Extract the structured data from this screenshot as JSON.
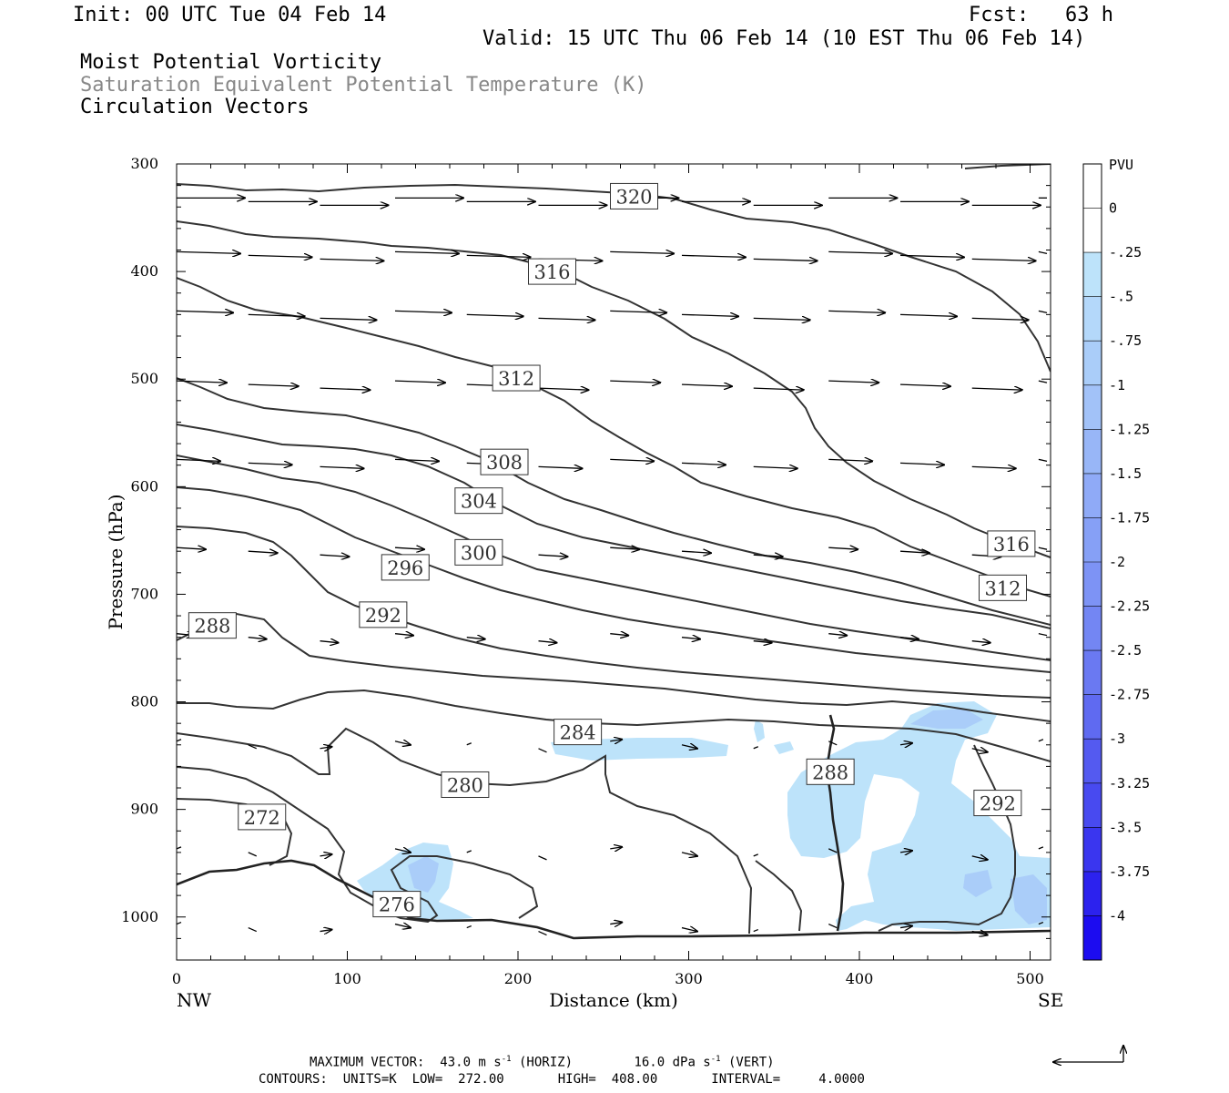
{
  "header": {
    "init": "Init: 00 UTC Tue 04 Feb 14",
    "fcst": "Fcst:   63 h",
    "valid": "Valid: 15 UTC Thu 06 Feb 14 (10 EST Thu 06 Feb 14)",
    "field1": "Moist Potential Vorticity",
    "field2": "Saturation Equivalent Potential Temperature (K)",
    "field3": "Circulation Vectors"
  },
  "chart_data": {
    "type": "cross-section",
    "xlabel": "Distance (km)",
    "ylabel": "Pressure (hPa)",
    "xlim": [
      0,
      512
    ],
    "ylim": [
      1040,
      300
    ],
    "x_ticks": [
      0,
      100,
      200,
      300,
      400,
      500
    ],
    "y_ticks": [
      300,
      400,
      500,
      600,
      700,
      800,
      900,
      1000
    ],
    "x_end_labels": {
      "left": "NW",
      "right": "SE"
    },
    "contour_labels": [
      {
        "text": "320",
        "x": 268,
        "p": 330
      },
      {
        "text": "316",
        "x": 220,
        "p": 400
      },
      {
        "text": "312",
        "x": 199,
        "p": 499
      },
      {
        "text": "308",
        "x": 192,
        "p": 577
      },
      {
        "text": "304",
        "x": 177,
        "p": 613
      },
      {
        "text": "300",
        "x": 177,
        "p": 661
      },
      {
        "text": "296",
        "x": 134,
        "p": 675
      },
      {
        "text": "292",
        "x": 121,
        "p": 719
      },
      {
        "text": "288",
        "x": 21,
        "p": 729
      },
      {
        "text": "284",
        "x": 235,
        "p": 828
      },
      {
        "text": "280",
        "x": 169,
        "p": 877
      },
      {
        "text": "272",
        "x": 50,
        "p": 907
      },
      {
        "text": "276",
        "x": 129,
        "p": 988
      },
      {
        "text": "288",
        "x": 383,
        "p": 865
      },
      {
        "text": "316",
        "x": 489,
        "p": 653
      },
      {
        "text": "312",
        "x": 484,
        "p": 694
      },
      {
        "text": "292",
        "x": 481,
        "p": 894
      }
    ],
    "contour_interval": 4,
    "contour_units": "K",
    "contour_low": 272,
    "contour_high": 408,
    "colorbar": {
      "unit": "PVU",
      "labels": [
        "0",
        "-.25",
        "-.5",
        "-.75",
        "-1",
        "-1.25",
        "-1.5",
        "-1.75",
        "-2",
        "-2.25",
        "-2.5",
        "-2.75",
        "-3",
        "-3.25",
        "-3.5",
        "-3.75",
        "-4"
      ],
      "colors": [
        "#ffffff",
        "#ffffff",
        "#bde3fa",
        "#b4d8fa",
        "#aacdf9",
        "#a2c2f8",
        "#98b6f7",
        "#8faaf7",
        "#86a0f6",
        "#7d93f5",
        "#7386f3",
        "#6a79f2",
        "#5f6af1",
        "#545af0",
        "#484af0",
        "#3a36ef",
        "#2c22ee",
        "#1c0cf0"
      ]
    },
    "max_vector_horiz": "43.0 m s",
    "max_vector_vert": "16.0 dPa s"
  },
  "footer": {
    "max_vector_prefix": "MAXIMUM VECTOR:  43.0 m s",
    "horiz_suffix": " (HORIZ)",
    "vert_prefix": "16.0 dPa s",
    "vert_suffix": " (VERT)",
    "sup": "-1",
    "contours": "CONTOURS:  UNITS=K  LOW=  272.00       HIGH=  408.00       INTERVAL=     4.0000"
  }
}
